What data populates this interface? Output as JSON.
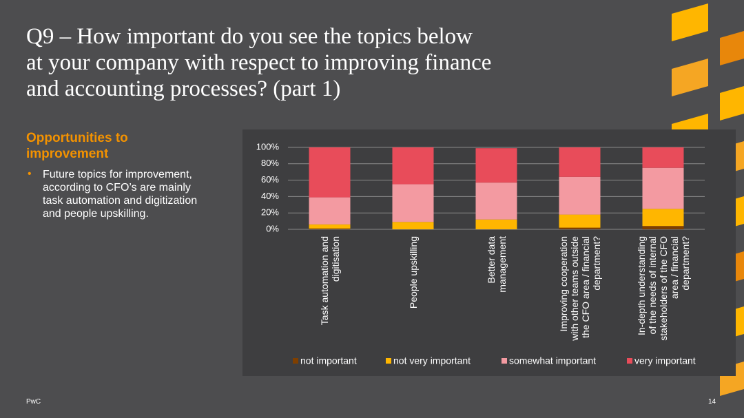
{
  "slide": {
    "title": "Q9 – How important do you see the topics below\nat your company with respect to improving finance\nand accounting processes? (part 1)",
    "heading": "Opportunities to\nimprovement",
    "bullet": "Future topics for improvement,\naccording to CFO’s are mainly\ntask automation and digitization\nand people upskilling.",
    "footer": "PwC",
    "page_number": "14"
  },
  "chart_data": {
    "type": "stacked_bar",
    "categories": [
      "Task automation and\ndigitisation",
      "People upskilling",
      "Better data\nmanagement",
      "Improving cooperation\nwith other teams outside\nthe CFO area / financial\ndepartment?",
      "In-depth understanding\nof the needs of internal\nstakeholders of the CFO\narea / financial\ndepartment?"
    ],
    "series": [
      {
        "name": "not important",
        "color": "#7f3f00",
        "values": [
          1,
          0,
          0,
          2,
          4
        ]
      },
      {
        "name": "not very important",
        "color": "#ffb600",
        "values": [
          5,
          9,
          12,
          16,
          21
        ]
      },
      {
        "name": "somewhat important",
        "color": "#f39aa1",
        "values": [
          33,
          46,
          45,
          46,
          50
        ]
      },
      {
        "name": "very important",
        "color": "#e84c5a",
        "values": [
          61,
          45,
          42,
          36,
          25
        ]
      }
    ],
    "ylim": [
      0,
      100
    ],
    "yticks": [
      {
        "value": 0,
        "label": "0%"
      },
      {
        "value": 20,
        "label": "20%"
      },
      {
        "value": 40,
        "label": "40%"
      },
      {
        "value": 60,
        "label": "60%"
      },
      {
        "value": 80,
        "label": "80%"
      },
      {
        "value": 100,
        "label": "100%"
      }
    ],
    "grid": true,
    "legend": "bottom"
  }
}
